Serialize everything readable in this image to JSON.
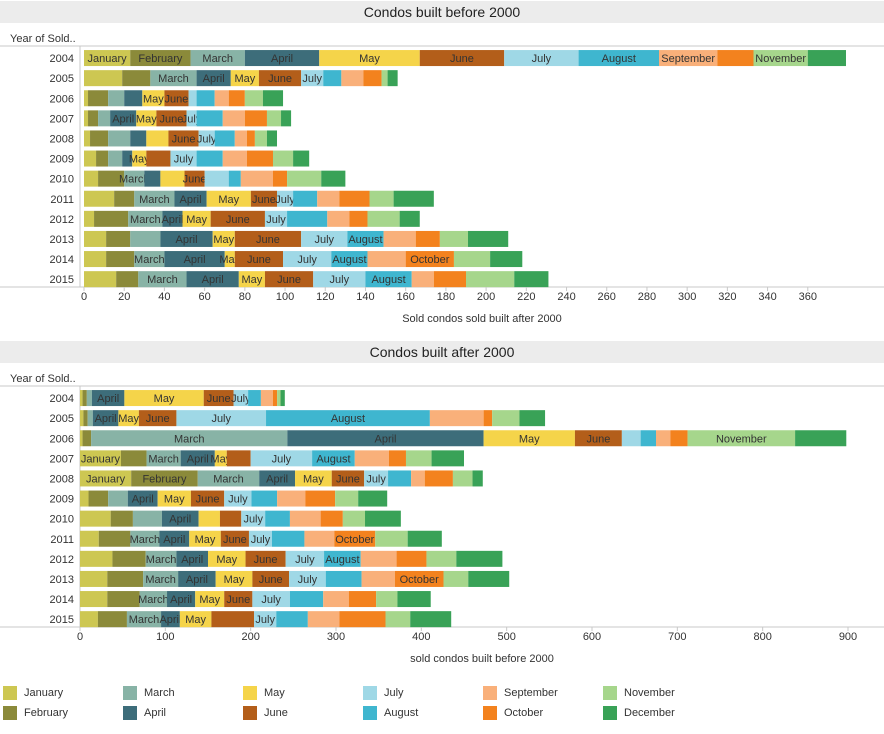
{
  "months": [
    "January",
    "February",
    "March",
    "April",
    "May",
    "June",
    "July",
    "August",
    "September",
    "October",
    "November",
    "December"
  ],
  "colors": [
    "#cdc752",
    "#8b8a3a",
    "#88b3a6",
    "#3d6d7a",
    "#f5d44a",
    "#b35e1a",
    "#9fd8e6",
    "#3fb6cf",
    "#f9b07a",
    "#f3821e",
    "#a6d68c",
    "#39a257"
  ],
  "label_color_light": "#333333",
  "chart_data": [
    {
      "type": "bar",
      "title": "Condos built before 2000",
      "xlabel": "Sold condos sold built after 2000",
      "ylabel": "Year of Sold..",
      "xlim": [
        0,
        380
      ],
      "xticks": [
        0,
        20,
        40,
        60,
        80,
        100,
        120,
        140,
        160,
        180,
        200,
        220,
        240,
        260,
        280,
        300,
        320,
        340,
        360
      ],
      "categories": [
        "2004",
        "2005",
        "2006",
        "2007",
        "2008",
        "2009",
        "2010",
        "2011",
        "2012",
        "2013",
        "2014",
        "2015"
      ],
      "values": [
        [
          23,
          30,
          27,
          37,
          50,
          42,
          37,
          40,
          29,
          18,
          27,
          19
        ],
        [
          19,
          14,
          23,
          17,
          14,
          21,
          11,
          9,
          11,
          9,
          3,
          5
        ],
        [
          2,
          10,
          8,
          9,
          11,
          12,
          4,
          9,
          7,
          8,
          9,
          10
        ],
        [
          2,
          5,
          6,
          13,
          10,
          15,
          5,
          13,
          11,
          11,
          7,
          5
        ],
        [
          3,
          9,
          11,
          8,
          11,
          15,
          8,
          10,
          6,
          4,
          6,
          5
        ],
        [
          6,
          6,
          7,
          5,
          7,
          12,
          13,
          13,
          12,
          13,
          10,
          8
        ],
        [
          7,
          13,
          10,
          8,
          12,
          10,
          12,
          6,
          16,
          7,
          17,
          12
        ],
        [
          15,
          10,
          20,
          16,
          22,
          13,
          8,
          12,
          11,
          15,
          12,
          20
        ],
        [
          5,
          17,
          17,
          10,
          14,
          27,
          11,
          20,
          11,
          9,
          16,
          10
        ],
        [
          11,
          12,
          15,
          26,
          11,
          33,
          23,
          18,
          16,
          12,
          14,
          20
        ],
        [
          11,
          14,
          15,
          30,
          5,
          24,
          24,
          18,
          19,
          24,
          18,
          16
        ],
        [
          16,
          11,
          24,
          26,
          13,
          24,
          26,
          23,
          11,
          16,
          24,
          17
        ]
      ],
      "shown_labels": [
        [
          0,
          1,
          2,
          3,
          4,
          5,
          6,
          7,
          8,
          10
        ],
        [
          2,
          3,
          4,
          5,
          6
        ],
        [
          4,
          5
        ],
        [
          3,
          4,
          5,
          6
        ],
        [
          5,
          6
        ],
        [
          4,
          6
        ],
        [
          2,
          5
        ],
        [
          2,
          3,
          4,
          5,
          6
        ],
        [
          2,
          3,
          4,
          5,
          6
        ],
        [
          3,
          4,
          5,
          6,
          7
        ],
        [
          2,
          3,
          4,
          5,
          6,
          7,
          9
        ],
        [
          2,
          3,
          4,
          5,
          6,
          7
        ]
      ]
    },
    {
      "type": "bar",
      "title": "Condos built after 2000",
      "xlabel": "sold condos built before 2000",
      "ylabel": "Year of Sold..",
      "xlim": [
        0,
        900
      ],
      "xticks": [
        0,
        100,
        200,
        300,
        400,
        500,
        600,
        700,
        800,
        900
      ],
      "categories": [
        "2004",
        "2005",
        "2006",
        "2007",
        "2008",
        "2009",
        "2010",
        "2011",
        "2012",
        "2013",
        "2014",
        "2015"
      ],
      "values": [
        [
          3,
          5,
          6,
          38,
          93,
          35,
          17,
          15,
          14,
          5,
          4,
          5
        ],
        [
          4,
          5,
          6,
          30,
          24,
          44,
          105,
          192,
          63,
          10,
          32,
          30
        ],
        [
          3,
          10,
          230,
          230,
          107,
          55,
          22,
          18,
          17,
          20,
          126,
          60
        ],
        [
          48,
          30,
          40,
          40,
          14,
          28,
          72,
          50,
          40,
          20,
          30,
          38
        ],
        [
          60,
          78,
          72,
          42,
          43,
          38,
          28,
          27,
          16,
          33,
          23,
          12
        ],
        [
          10,
          23,
          23,
          35,
          39,
          39,
          32,
          30,
          33,
          35,
          27,
          34
        ],
        [
          36,
          26,
          34,
          43,
          25,
          25,
          28,
          29,
          36,
          26,
          26,
          42
        ],
        [
          22,
          37,
          34,
          35,
          37,
          33,
          27,
          38,
          35,
          48,
          38,
          40
        ],
        [
          38,
          39,
          36,
          37,
          44,
          47,
          45,
          43,
          42,
          35,
          35,
          54
        ],
        [
          32,
          42,
          41,
          44,
          43,
          43,
          43,
          42,
          39,
          57,
          29,
          48
        ],
        [
          32,
          38,
          32,
          33,
          34,
          33,
          44,
          39,
          30,
          32,
          25,
          39
        ],
        [
          21,
          34,
          40,
          22,
          37,
          50,
          26,
          37,
          37,
          54,
          29,
          48
        ]
      ],
      "shown_labels": [
        [
          3,
          4,
          5,
          6
        ],
        [
          3,
          4,
          5,
          6,
          7
        ],
        [
          2,
          3,
          4,
          5,
          10
        ],
        [
          0,
          2,
          3,
          4,
          6,
          7
        ],
        [
          0,
          1,
          2,
          3,
          4,
          5,
          6
        ],
        [
          3,
          4,
          5,
          6
        ],
        [
          3,
          6
        ],
        [
          2,
          3,
          4,
          5,
          6,
          9
        ],
        [
          2,
          3,
          4,
          5,
          6,
          7
        ],
        [
          2,
          3,
          4,
          5,
          6,
          9
        ],
        [
          2,
          3,
          4,
          5,
          6
        ],
        [
          2,
          3,
          4,
          6
        ]
      ]
    }
  ]
}
